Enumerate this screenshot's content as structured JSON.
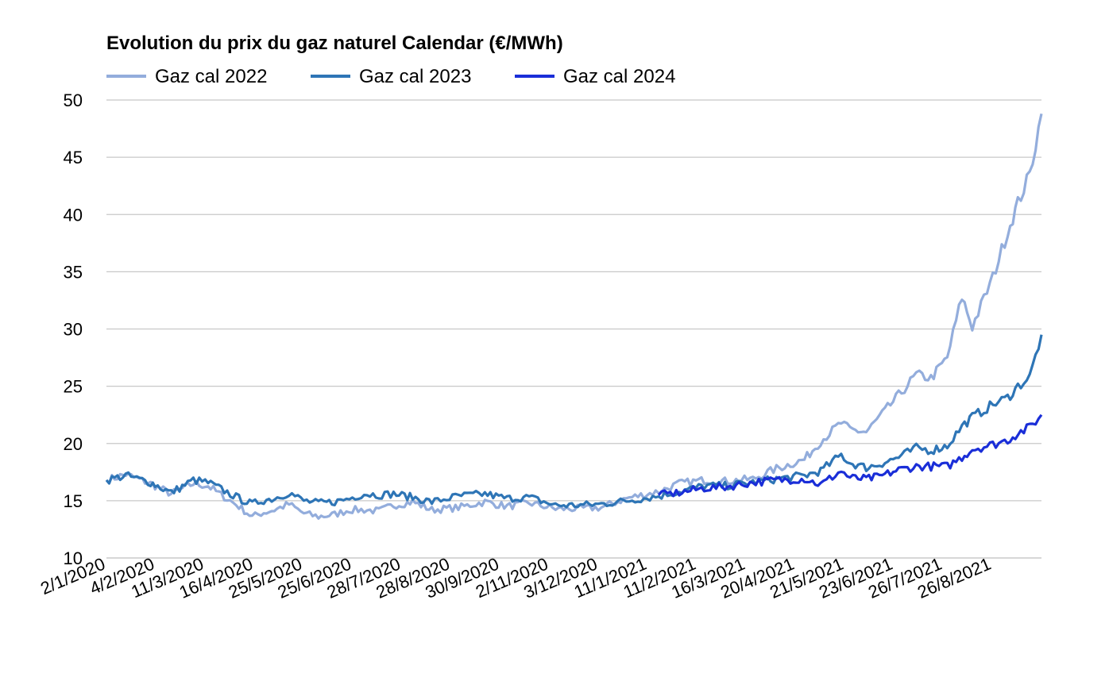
{
  "chart_data": {
    "type": "line",
    "title": "Evolution du prix du gaz naturel Calendar (€/MWh)",
    "xlabel": "",
    "ylabel": "",
    "ylim": [
      10,
      50
    ],
    "yticks": [
      10,
      15,
      20,
      25,
      30,
      35,
      40,
      45,
      50
    ],
    "grid": true,
    "legend_position": "top-left",
    "x_tick_labels": [
      "2/1/2020",
      "4/2/2020",
      "11/3/2020",
      "16/4/2020",
      "25/5/2020",
      "25/6/2020",
      "28/7/2020",
      "28/8/2020",
      "30/9/2020",
      "2/11/2020",
      "3/12/2020",
      "11/1/2021",
      "11/2/2021",
      "16/3/2021",
      "20/4/2021",
      "21/5/2021",
      "23/6/2021",
      "26/7/2021",
      "26/8/2021"
    ],
    "series": [
      {
        "name": "Gaz cal 2022",
        "color": "#93ADDC",
        "points": [
          [
            "2/1/2020",
            16.8
          ],
          [
            "15/1/2020",
            17.3
          ],
          [
            "1/2/2020",
            16.5
          ],
          [
            "4/2/2020",
            16.3
          ],
          [
            "15/2/2020",
            15.6
          ],
          [
            "1/3/2020",
            16.5
          ],
          [
            "11/3/2020",
            16.3
          ],
          [
            "20/3/2020",
            15.5
          ],
          [
            "1/4/2020",
            14.5
          ],
          [
            "10/4/2020",
            13.6
          ],
          [
            "16/4/2020",
            13.9
          ],
          [
            "25/4/2020",
            14.2
          ],
          [
            "5/5/2020",
            14.7
          ],
          [
            "15/5/2020",
            13.9
          ],
          [
            "25/5/2020",
            13.6
          ],
          [
            "5/6/2020",
            13.8
          ],
          [
            "15/6/2020",
            14.2
          ],
          [
            "25/6/2020",
            14.2
          ],
          [
            "5/7/2020",
            14.1
          ],
          [
            "15/7/2020",
            14.6
          ],
          [
            "28/7/2020",
            14.9
          ],
          [
            "10/8/2020",
            14.2
          ],
          [
            "28/8/2020",
            14.4
          ],
          [
            "15/9/2020",
            14.9
          ],
          [
            "30/9/2020",
            14.5
          ],
          [
            "15/10/2020",
            14.8
          ],
          [
            "2/11/2020",
            14.3
          ],
          [
            "15/11/2020",
            14.3
          ],
          [
            "3/12/2020",
            14.4
          ],
          [
            "20/12/2020",
            15.2
          ],
          [
            "11/1/2021",
            15.8
          ],
          [
            "25/1/2021",
            16.5
          ],
          [
            "11/2/2021",
            16.8
          ],
          [
            "25/2/2021",
            16.7
          ],
          [
            "16/3/2021",
            16.9
          ],
          [
            "1/4/2021",
            17.8
          ],
          [
            "20/4/2021",
            18.6
          ],
          [
            "1/5/2021",
            20.2
          ],
          [
            "15/5/2021",
            21.8
          ],
          [
            "21/5/2021",
            21.2
          ],
          [
            "1/6/2021",
            21.0
          ],
          [
            "10/6/2021",
            22.3
          ],
          [
            "23/6/2021",
            24.2
          ],
          [
            "5/7/2021",
            26.0
          ],
          [
            "15/7/2021",
            25.7
          ],
          [
            "26/7/2021",
            27.5
          ],
          [
            "5/8/2021",
            32.8
          ],
          [
            "12/8/2021",
            30.2
          ],
          [
            "26/8/2021",
            34.5
          ],
          [
            "5/9/2021",
            38.5
          ],
          [
            "12/9/2021",
            41.0
          ],
          [
            "20/9/2021",
            43.5
          ],
          [
            "28/9/2021",
            48.8
          ]
        ]
      },
      {
        "name": "Gaz cal 2023",
        "color": "#2E75B6",
        "points": [
          [
            "2/1/2020",
            16.8
          ],
          [
            "15/1/2020",
            17.2
          ],
          [
            "1/2/2020",
            16.6
          ],
          [
            "4/2/2020",
            16.4
          ],
          [
            "15/2/2020",
            15.7
          ],
          [
            "1/3/2020",
            16.8
          ],
          [
            "11/3/2020",
            16.6
          ],
          [
            "20/3/2020",
            16.0
          ],
          [
            "1/4/2020",
            15.2
          ],
          [
            "10/4/2020",
            14.7
          ],
          [
            "16/4/2020",
            15.0
          ],
          [
            "25/4/2020",
            15.2
          ],
          [
            "5/5/2020",
            15.7
          ],
          [
            "15/5/2020",
            15.0
          ],
          [
            "25/5/2020",
            14.8
          ],
          [
            "5/6/2020",
            14.9
          ],
          [
            "15/6/2020",
            15.2
          ],
          [
            "25/6/2020",
            15.6
          ],
          [
            "5/7/2020",
            15.5
          ],
          [
            "15/7/2020",
            15.6
          ],
          [
            "28/7/2020",
            15.3
          ],
          [
            "10/8/2020",
            14.9
          ],
          [
            "28/8/2020",
            15.4
          ],
          [
            "15/9/2020",
            15.6
          ],
          [
            "30/9/2020",
            15.2
          ],
          [
            "15/10/2020",
            15.3
          ],
          [
            "2/11/2020",
            14.6
          ],
          [
            "15/11/2020",
            14.6
          ],
          [
            "3/12/2020",
            14.7
          ],
          [
            "20/12/2020",
            15.0
          ],
          [
            "11/1/2021",
            15.4
          ],
          [
            "25/1/2021",
            15.8
          ],
          [
            "11/2/2021",
            16.3
          ],
          [
            "25/2/2021",
            16.3
          ],
          [
            "16/3/2021",
            16.6
          ],
          [
            "1/4/2021",
            16.9
          ],
          [
            "20/4/2021",
            17.2
          ],
          [
            "1/5/2021",
            17.6
          ],
          [
            "15/5/2021",
            19.0
          ],
          [
            "21/5/2021",
            18.3
          ],
          [
            "1/6/2021",
            17.9
          ],
          [
            "10/6/2021",
            18.2
          ],
          [
            "23/6/2021",
            18.8
          ],
          [
            "5/7/2021",
            19.6
          ],
          [
            "15/7/2021",
            19.4
          ],
          [
            "26/7/2021",
            19.8
          ],
          [
            "5/8/2021",
            21.5
          ],
          [
            "12/8/2021",
            22.3
          ],
          [
            "26/8/2021",
            23.4
          ],
          [
            "5/9/2021",
            24.0
          ],
          [
            "12/9/2021",
            25.0
          ],
          [
            "20/9/2021",
            25.8
          ],
          [
            "28/9/2021",
            29.5
          ]
        ]
      },
      {
        "name": "Gaz cal 2024",
        "color": "#1A2ED8",
        "points": [
          [
            "11/1/2021",
            15.5
          ],
          [
            "25/1/2021",
            15.7
          ],
          [
            "11/2/2021",
            16.1
          ],
          [
            "25/2/2021",
            16.2
          ],
          [
            "16/3/2021",
            16.6
          ],
          [
            "1/4/2021",
            16.8
          ],
          [
            "20/4/2021",
            16.9
          ],
          [
            "1/5/2021",
            16.4
          ],
          [
            "15/5/2021",
            17.6
          ],
          [
            "21/5/2021",
            17.0
          ],
          [
            "1/6/2021",
            16.9
          ],
          [
            "10/6/2021",
            17.1
          ],
          [
            "23/6/2021",
            17.7
          ],
          [
            "5/7/2021",
            18.0
          ],
          [
            "15/7/2021",
            18.0
          ],
          [
            "26/7/2021",
            18.0
          ],
          [
            "5/8/2021",
            18.8
          ],
          [
            "12/8/2021",
            19.5
          ],
          [
            "26/8/2021",
            19.9
          ],
          [
            "5/9/2021",
            20.3
          ],
          [
            "12/9/2021",
            20.9
          ],
          [
            "20/9/2021",
            21.4
          ],
          [
            "28/9/2021",
            22.5
          ]
        ]
      }
    ]
  }
}
